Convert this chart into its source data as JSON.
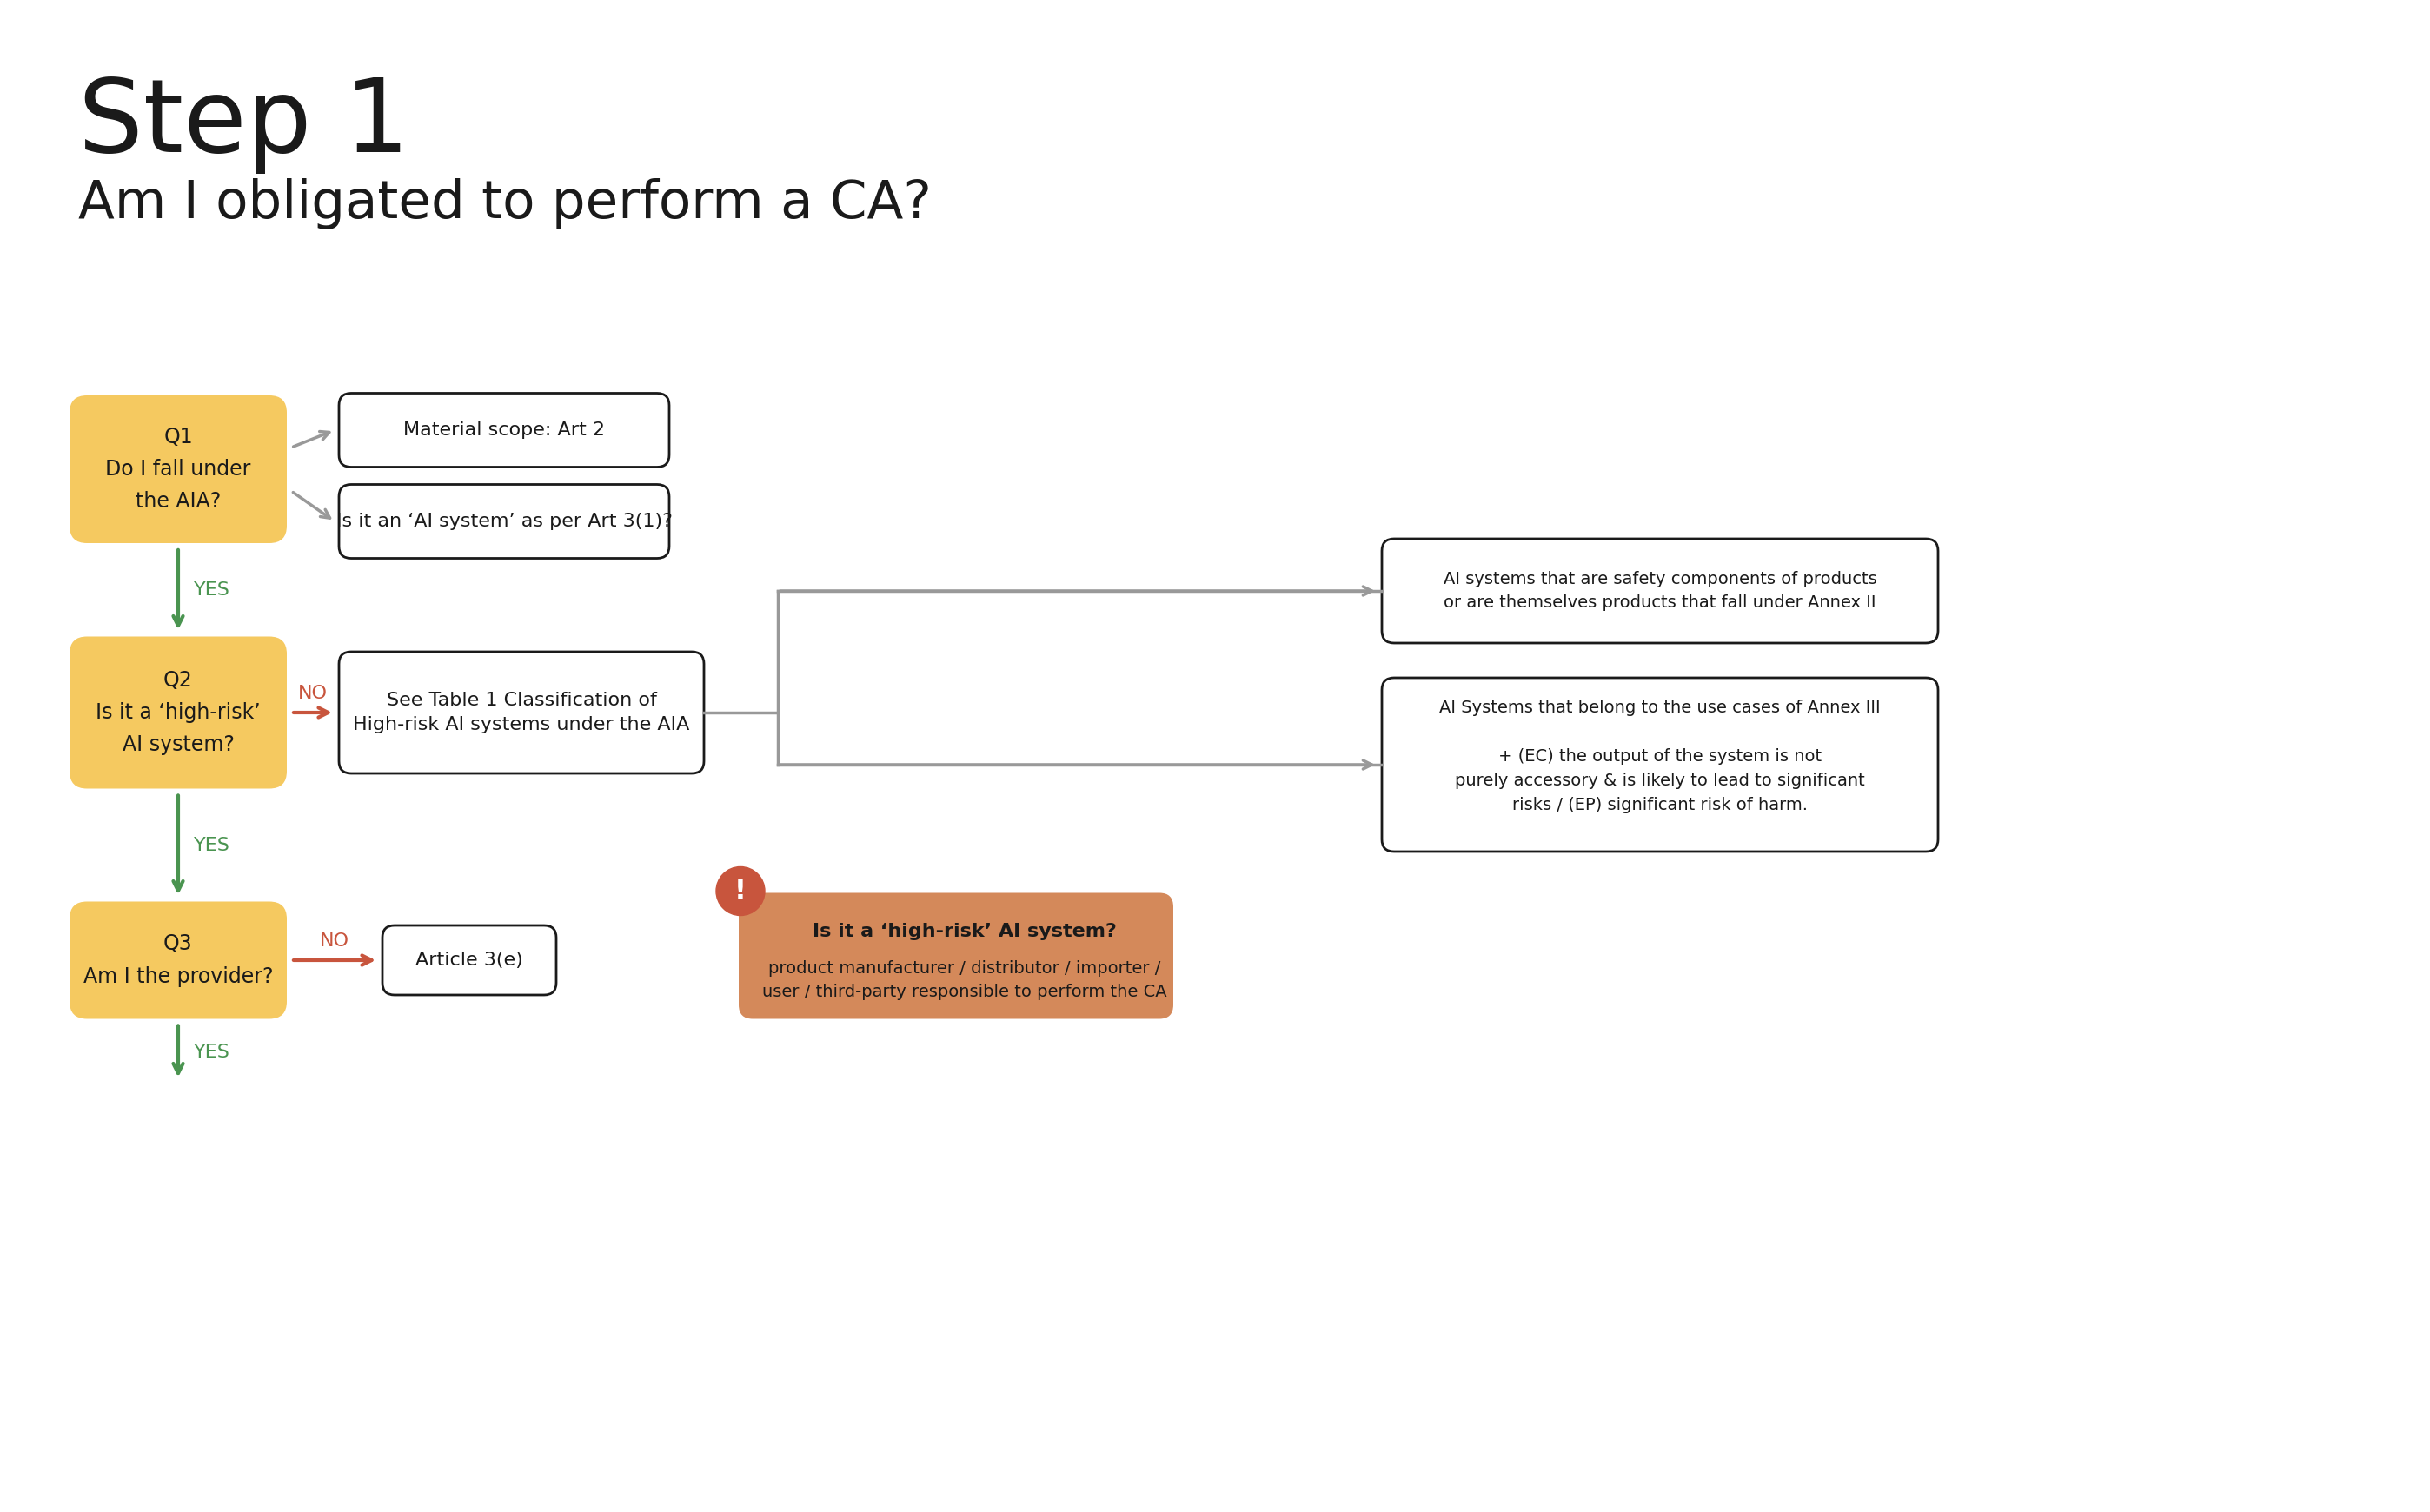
{
  "title_large": "Step 1",
  "title_sub": "Am I obligated to perform a CA?",
  "bg_color": "#ffffff",
  "golden_color": "#F5C960",
  "white_box_border": "#1a1a1a",
  "orange_arrow_color": "#C8553D",
  "green_arrow_color": "#4A9450",
  "gray_arrow_color": "#999999",
  "orange_info_bg": "#D4895A",
  "q1_text": "Q1\nDo I fall under\nthe AIA?",
  "q2_text": "Q2\nIs it a ‘high-risk’\nAI system?",
  "q3_text": "Q3\nAm I the provider?",
  "box1_text": "Material scope: Art 2",
  "box2_text": "Is it an ‘AI system’ as per Art 3(1)?",
  "box3_text": "See Table 1 Classification of\nHigh-risk AI systems under the AIA",
  "box4_text": "Article 3(e)",
  "box5_text": "AI systems that are safety components of products\nor are themselves products that fall under Annex II",
  "box6_text": "AI Systems that belong to the use cases of Annex III\n\n+ (EC) the output of the system is not\npurely accessory & is likely to lead to significant\nrisks / (EP) significant risk of harm.",
  "info_title": "Is it a ‘high-risk’ AI system?",
  "info_body": "product manufacturer / distributor / importer /\nuser / third-party responsible to perform the CA"
}
